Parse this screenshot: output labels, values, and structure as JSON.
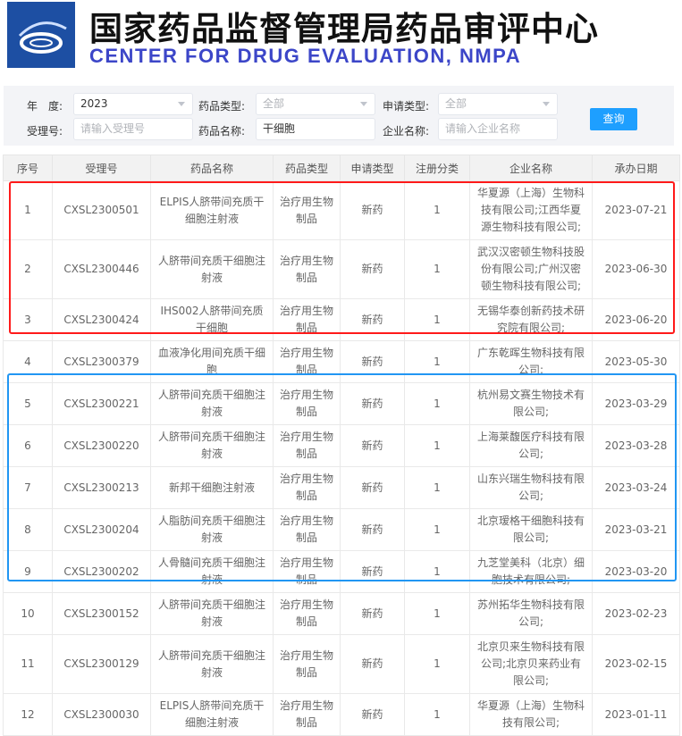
{
  "header": {
    "title_cn": "国家药品监督管理局药品审评中心",
    "title_en": "CENTER FOR DRUG EVALUATION, NMPA"
  },
  "filters": {
    "year_label": "年　度:",
    "year_value": "2023",
    "drug_type_label": "药品类型:",
    "drug_type_value": "全部",
    "apply_type_label": "申请类型:",
    "apply_type_value": "全部",
    "accept_no_label": "受理号:",
    "accept_no_placeholder": "请输入受理号",
    "drug_name_label": "药品名称:",
    "drug_name_value": "干细胞",
    "company_label": "企业名称:",
    "company_placeholder": "请输入企业名称",
    "query_label": "查询"
  },
  "table": {
    "columns": [
      "序号",
      "受理号",
      "药品名称",
      "药品类型",
      "申请类型",
      "注册分类",
      "企业名称",
      "承办日期"
    ],
    "rows": [
      [
        "1",
        "CXSL2300501",
        "ELPIS人脐带间充质干细胞注射液",
        "治疗用生物制品",
        "新药",
        "1",
        "华夏源（上海）生物科技有限公司;江西华夏源生物科技有限公司;",
        "2023-07-21"
      ],
      [
        "2",
        "CXSL2300446",
        "人脐带间充质干细胞注射液",
        "治疗用生物制品",
        "新药",
        "1",
        "武汉汉密顿生物科技股份有限公司;广州汉密顿生物科技有限公司;",
        "2023-06-30"
      ],
      [
        "3",
        "CXSL2300424",
        "IHS002人脐带间充质干细胞",
        "治疗用生物制品",
        "新药",
        "1",
        "无锡华泰创新药技术研究院有限公司;",
        "2023-06-20"
      ],
      [
        "4",
        "CXSL2300379",
        "血液净化用间充质干细胞",
        "治疗用生物制品",
        "新药",
        "1",
        "广东乾晖生物科技有限公司;",
        "2023-05-30"
      ],
      [
        "5",
        "CXSL2300221",
        "人脐带间充质干细胞注射液",
        "治疗用生物制品",
        "新药",
        "1",
        "杭州易文赛生物技术有限公司;",
        "2023-03-29"
      ],
      [
        "6",
        "CXSL2300220",
        "人脐带间充质干细胞注射液",
        "治疗用生物制品",
        "新药",
        "1",
        "上海莱馥医疗科技有限公司;",
        "2023-03-28"
      ],
      [
        "7",
        "CXSL2300213",
        "新邦干细胞注射液",
        "治疗用生物制品",
        "新药",
        "1",
        "山东兴瑞生物科技有限公司;",
        "2023-03-24"
      ],
      [
        "8",
        "CXSL2300204",
        "人脂肪间充质干细胞注射液",
        "治疗用生物制品",
        "新药",
        "1",
        "北京瑷格干细胞科技有限公司;",
        "2023-03-21"
      ],
      [
        "9",
        "CXSL2300202",
        "人骨髓间充质干细胞注射液",
        "治疗用生物制品",
        "新药",
        "1",
        "九芝堂美科（北京）细胞技术有限公司;",
        "2023-03-20"
      ],
      [
        "10",
        "CXSL2300152",
        "人脐带间充质干细胞注射液",
        "治疗用生物制品",
        "新药",
        "1",
        "苏州拓华生物科技有限公司;",
        "2023-02-23"
      ],
      [
        "11",
        "CXSL2300129",
        "人脐带间充质干细胞注射液",
        "治疗用生物制品",
        "新药",
        "1",
        "北京贝来生物科技有限公司;北京贝来药业有限公司;",
        "2023-02-15"
      ],
      [
        "12",
        "CXSL2300030",
        "ELPIS人脐带间充质干细胞注射液",
        "治疗用生物制品",
        "新药",
        "1",
        "华夏源（上海）生物科技有限公司;",
        "2023-01-11"
      ]
    ]
  },
  "colors": {
    "red_box": "#ff1a1a",
    "blue_box": "#2196f3",
    "query_button": "#1e9fff",
    "title_en": "#3c46c8"
  }
}
